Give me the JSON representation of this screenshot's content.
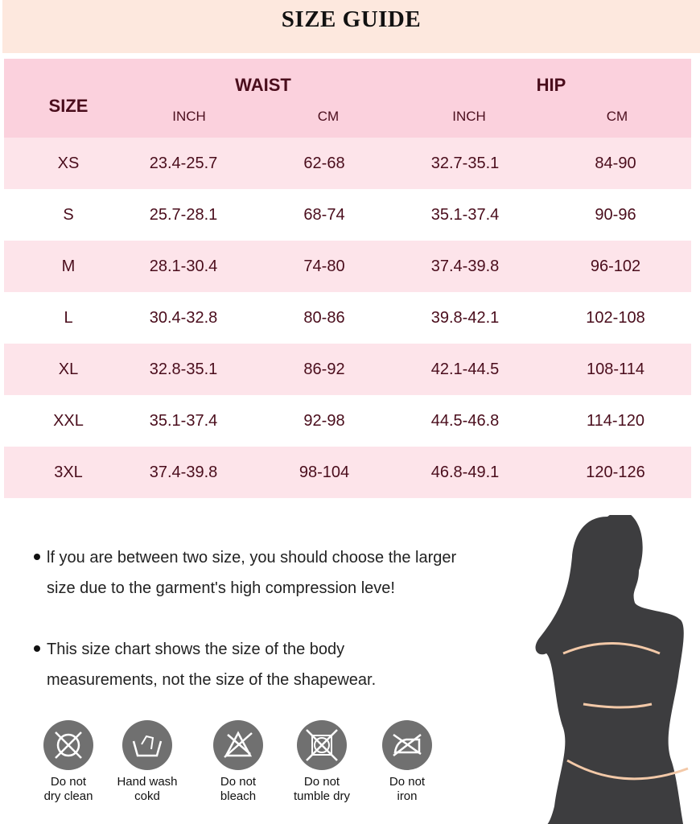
{
  "title": "SIZE GUIDE",
  "table": {
    "size_header": "SIZE",
    "waist_header": "WAIST",
    "hip_header": "HIP",
    "sub_headers": [
      "INCH",
      "CM",
      "INCH",
      "CM"
    ],
    "rows": [
      [
        "XS",
        "23.4-25.7",
        "62-68",
        "32.7-35.1",
        "84-90"
      ],
      [
        "S",
        "25.7-28.1",
        "68-74",
        "35.1-37.4",
        "90-96"
      ],
      [
        "M",
        "28.1-30.4",
        "74-80",
        "37.4-39.8",
        "96-102"
      ],
      [
        "L",
        "30.4-32.8",
        "80-86",
        "39.8-42.1",
        "102-108"
      ],
      [
        "XL",
        "32.8-35.1",
        "86-92",
        "42.1-44.5",
        "108-114"
      ],
      [
        "XXL",
        "35.1-37.4",
        "92-98",
        "44.5-46.8",
        "114-120"
      ],
      [
        "3XL",
        "37.4-39.8",
        "98-104",
        "46.8-49.1",
        "120-126"
      ]
    ]
  },
  "notes": [
    "lf you are between two size, you should choose the larger size due to the garment's high compression leve!",
    "This size chart shows the size of the body measurements, not the size of the shapewear."
  ],
  "care": [
    {
      "icon": "no-dry-clean-icon",
      "line1": "Do not",
      "line2": "dry clean"
    },
    {
      "icon": "hand-wash-icon",
      "line1": "Hand wash",
      "line2": "cokd"
    },
    {
      "icon": "no-bleach-icon",
      "line1": "Do not",
      "line2": "bleach"
    },
    {
      "icon": "no-tumble-dry-icon",
      "line1": "Do not",
      "line2": "tumble dry"
    },
    {
      "icon": "no-iron-icon",
      "line1": "Do not",
      "line2": "iron"
    }
  ],
  "colors": {
    "banner": "#fde8de",
    "header": "#fbd1dd",
    "row_alt": "#fde4ea",
    "text": "#4a0d1c",
    "icon": "#707070",
    "measure": "#f3c9a8"
  }
}
